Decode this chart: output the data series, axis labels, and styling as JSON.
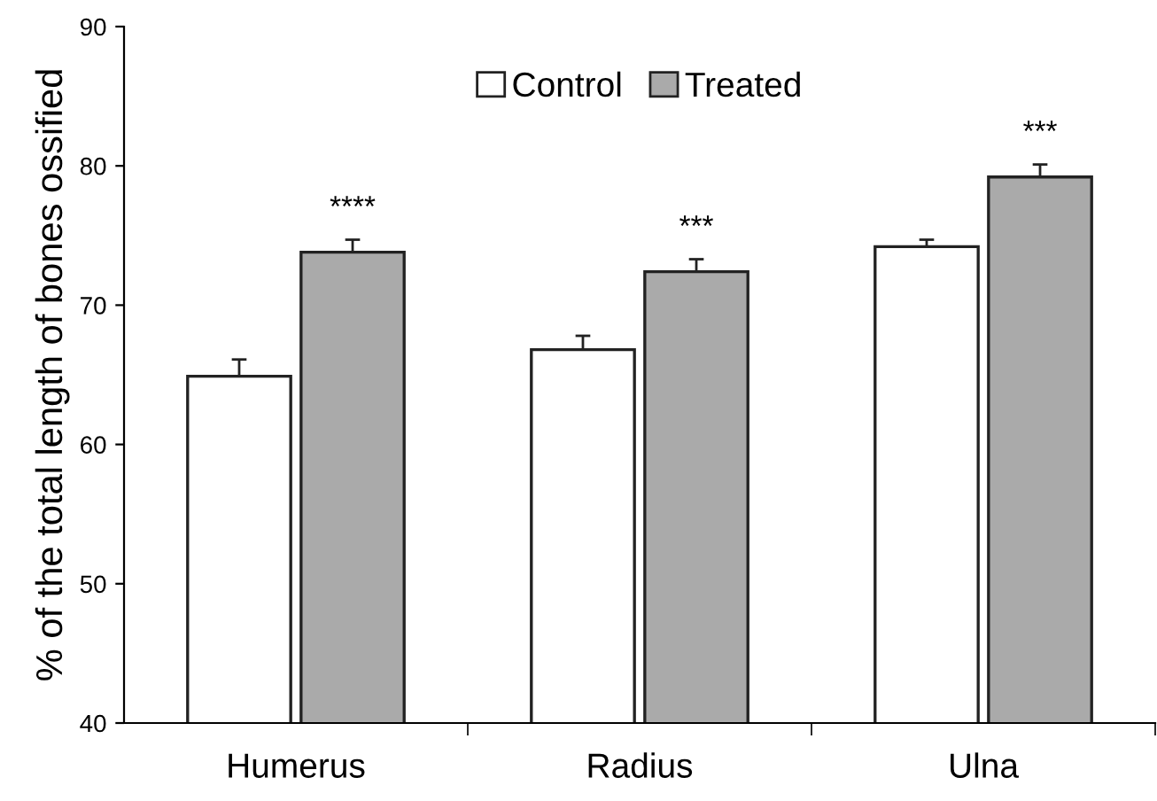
{
  "chart_data": {
    "type": "bar",
    "ylabel": "% of the total length of bones ossified",
    "categories": [
      "Humerus",
      "Radius",
      "Ulna"
    ],
    "series": [
      {
        "name": "Control",
        "color": "#ffffff",
        "values": [
          64.9,
          66.8,
          74.2
        ],
        "errors": [
          [
            64.9,
            66.1
          ],
          [
            66.8,
            67.8
          ],
          [
            74.2,
            74.7
          ]
        ]
      },
      {
        "name": "Treated",
        "color": "#aaaaaa",
        "values": [
          73.8,
          72.4,
          79.2
        ],
        "errors": [
          [
            73.8,
            74.7
          ],
          [
            72.4,
            73.3
          ],
          [
            79.2,
            80.1
          ]
        ]
      }
    ],
    "ylim": [
      40,
      90
    ],
    "yticks": [
      40,
      50,
      60,
      70,
      80,
      90
    ],
    "grid": false,
    "legend": "top",
    "annotations": [
      "****",
      "***",
      "***"
    ]
  }
}
